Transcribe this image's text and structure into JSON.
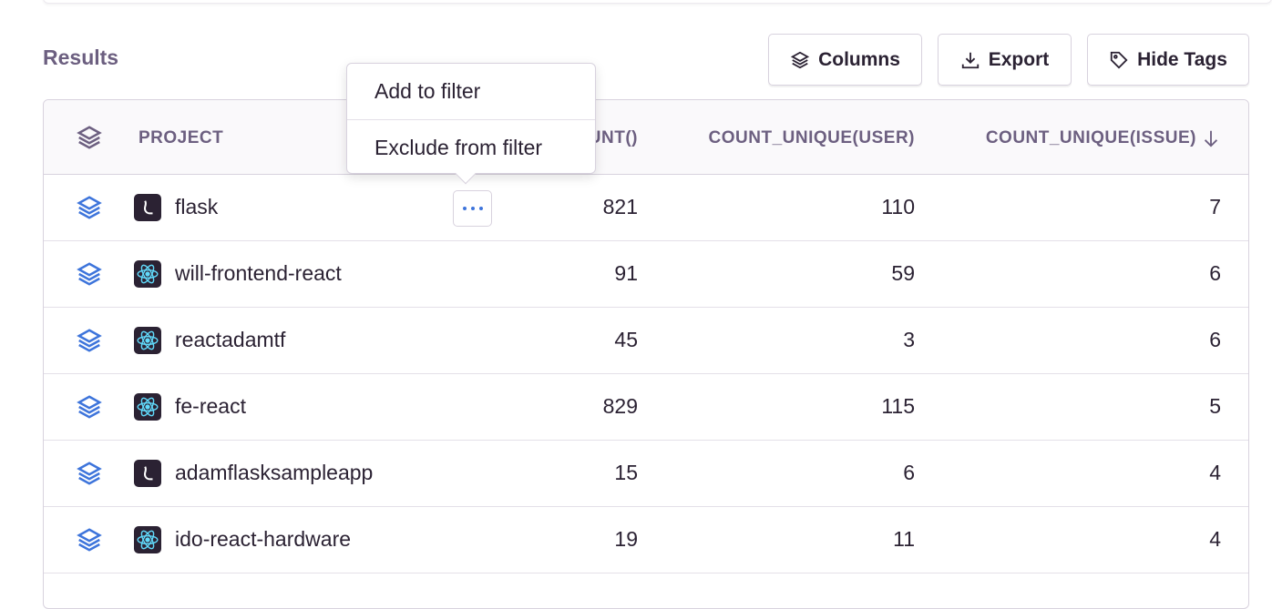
{
  "title": "Results",
  "toolbar": {
    "columns": "Columns",
    "export": "Export",
    "hide_tags": "Hide Tags"
  },
  "headers": {
    "project": "PROJECT",
    "count": "COUNT()",
    "count_unique_user": "COUNT_UNIQUE(USER)",
    "count_unique_issue": "COUNT_UNIQUE(ISSUE)"
  },
  "sort": {
    "column": "count_unique_issue",
    "direction": "desc"
  },
  "popover": {
    "add": "Add to filter",
    "exclude": "Exclude from filter"
  },
  "colors": {
    "accent": "#3d74db",
    "react": "#61dafb",
    "header_text": "#6c5f80"
  },
  "rows": [
    {
      "project": "flask",
      "platform": "flask",
      "count": "821",
      "users": "110",
      "issues": "7"
    },
    {
      "project": "will-frontend-react",
      "platform": "react",
      "count": "91",
      "users": "59",
      "issues": "6"
    },
    {
      "project": "reactadamtf",
      "platform": "react",
      "count": "45",
      "users": "3",
      "issues": "6"
    },
    {
      "project": "fe-react",
      "platform": "react",
      "count": "829",
      "users": "115",
      "issues": "5"
    },
    {
      "project": "adamflasksampleapp",
      "platform": "flask",
      "count": "15",
      "users": "6",
      "issues": "4"
    },
    {
      "project": "ido-react-hardware",
      "platform": "react",
      "count": "19",
      "users": "11",
      "issues": "4"
    }
  ]
}
